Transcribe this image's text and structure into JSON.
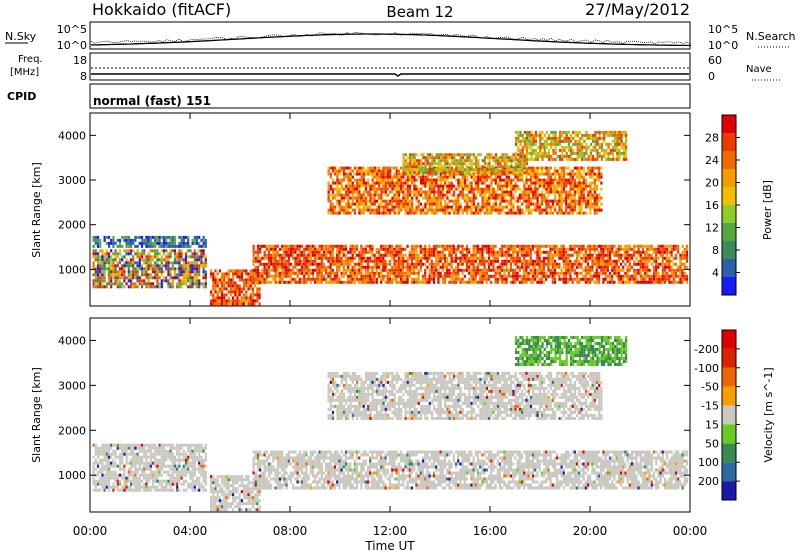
{
  "header": {
    "station": "Hokkaido (fitACF)",
    "beam": "Beam 12",
    "date": "27/May/2012"
  },
  "noise_panel": {
    "left_label": "N.Sky",
    "right_label": "N.Search",
    "left_ticks": [
      "10^5",
      "10^0"
    ],
    "right_ticks": [
      "10^5",
      "10^0"
    ]
  },
  "freq_panel": {
    "left_label_1": "Freq.",
    "left_label_2": "[MHz]",
    "right_label": "Nave",
    "left_ticks": [
      "18",
      "8"
    ],
    "right_ticks": [
      "60",
      "0"
    ]
  },
  "cpid_panel": {
    "label": "CPID",
    "mode": "normal (fast) 151"
  },
  "x_axis": {
    "title": "Time UT",
    "tick_labels": [
      "00:00",
      "04:00",
      "08:00",
      "12:00",
      "16:00",
      "20:00",
      "00:00"
    ]
  },
  "chart_data": [
    {
      "type": "heatmap",
      "name": "power",
      "ylabel": "Slant Range [km]",
      "xlabel": "Time UT",
      "y_ticks": [
        1000,
        2000,
        3000,
        4000
      ],
      "ylim": [
        180,
        4500
      ],
      "xlim_hours": [
        0,
        24
      ],
      "colorbar": {
        "label": "Power [dB]",
        "tick_labels": [
          "4",
          "8",
          "12",
          "16",
          "20",
          "24",
          "28"
        ],
        "colors": [
          "#1a1aff",
          "#2b5fa8",
          "#3f8a5a",
          "#55a842",
          "#8fcc2a",
          "#f0c000",
          "#f59a00",
          "#f06a00",
          "#ee3a00",
          "#e00000"
        ]
      },
      "scatter_bands": [
        {
          "t0": 0.1,
          "t1": 4.7,
          "r0": 600,
          "r1": 1450,
          "level": "mixed-low"
        },
        {
          "t0": 0.1,
          "t1": 4.7,
          "r0": 1500,
          "r1": 1750,
          "level": "low"
        },
        {
          "t0": 4.8,
          "t1": 6.8,
          "r0": 180,
          "r1": 1000,
          "level": "high"
        },
        {
          "t0": 6.5,
          "t1": 23.9,
          "r0": 700,
          "r1": 1550,
          "level": "high"
        },
        {
          "t0": 9.5,
          "t1": 20.5,
          "r0": 2200,
          "r1": 3300,
          "level": "mid-high"
        },
        {
          "t0": 12.5,
          "t1": 17.5,
          "r0": 3100,
          "r1": 3600,
          "level": "mid"
        },
        {
          "t0": 17.0,
          "t1": 21.5,
          "r0": 3400,
          "r1": 4100,
          "level": "mid"
        }
      ]
    },
    {
      "type": "heatmap",
      "name": "velocity",
      "ylabel": "Slant Range [km]",
      "xlabel": "Time UT",
      "y_ticks": [
        1000,
        2000,
        3000,
        4000
      ],
      "ylim": [
        180,
        4500
      ],
      "xlim_hours": [
        0,
        24
      ],
      "colorbar": {
        "label": "Velocity [m s^-1]",
        "tick_labels": [
          "200",
          "100",
          "50",
          "15",
          "-15",
          "-50",
          "-100",
          "-200"
        ],
        "colors": [
          "#1a1aaa",
          "#2b6aa0",
          "#3a8a50",
          "#66cc22",
          "#c8c8c0",
          "#f5a000",
          "#ee6600",
          "#dd2200",
          "#dd0000"
        ]
      },
      "scatter_bands": [
        {
          "t0": 0.1,
          "t1": 4.7,
          "r0": 600,
          "r1": 1700,
          "level": "ground"
        },
        {
          "t0": 4.8,
          "t1": 6.8,
          "r0": 180,
          "r1": 1000,
          "level": "ground"
        },
        {
          "t0": 6.5,
          "t1": 23.9,
          "r0": 700,
          "r1": 1550,
          "level": "ground"
        },
        {
          "t0": 9.5,
          "t1": 20.5,
          "r0": 2200,
          "r1": 3300,
          "level": "ground"
        },
        {
          "t0": 17.0,
          "t1": 21.5,
          "r0": 3400,
          "r1": 4100,
          "level": "positive"
        }
      ]
    }
  ]
}
